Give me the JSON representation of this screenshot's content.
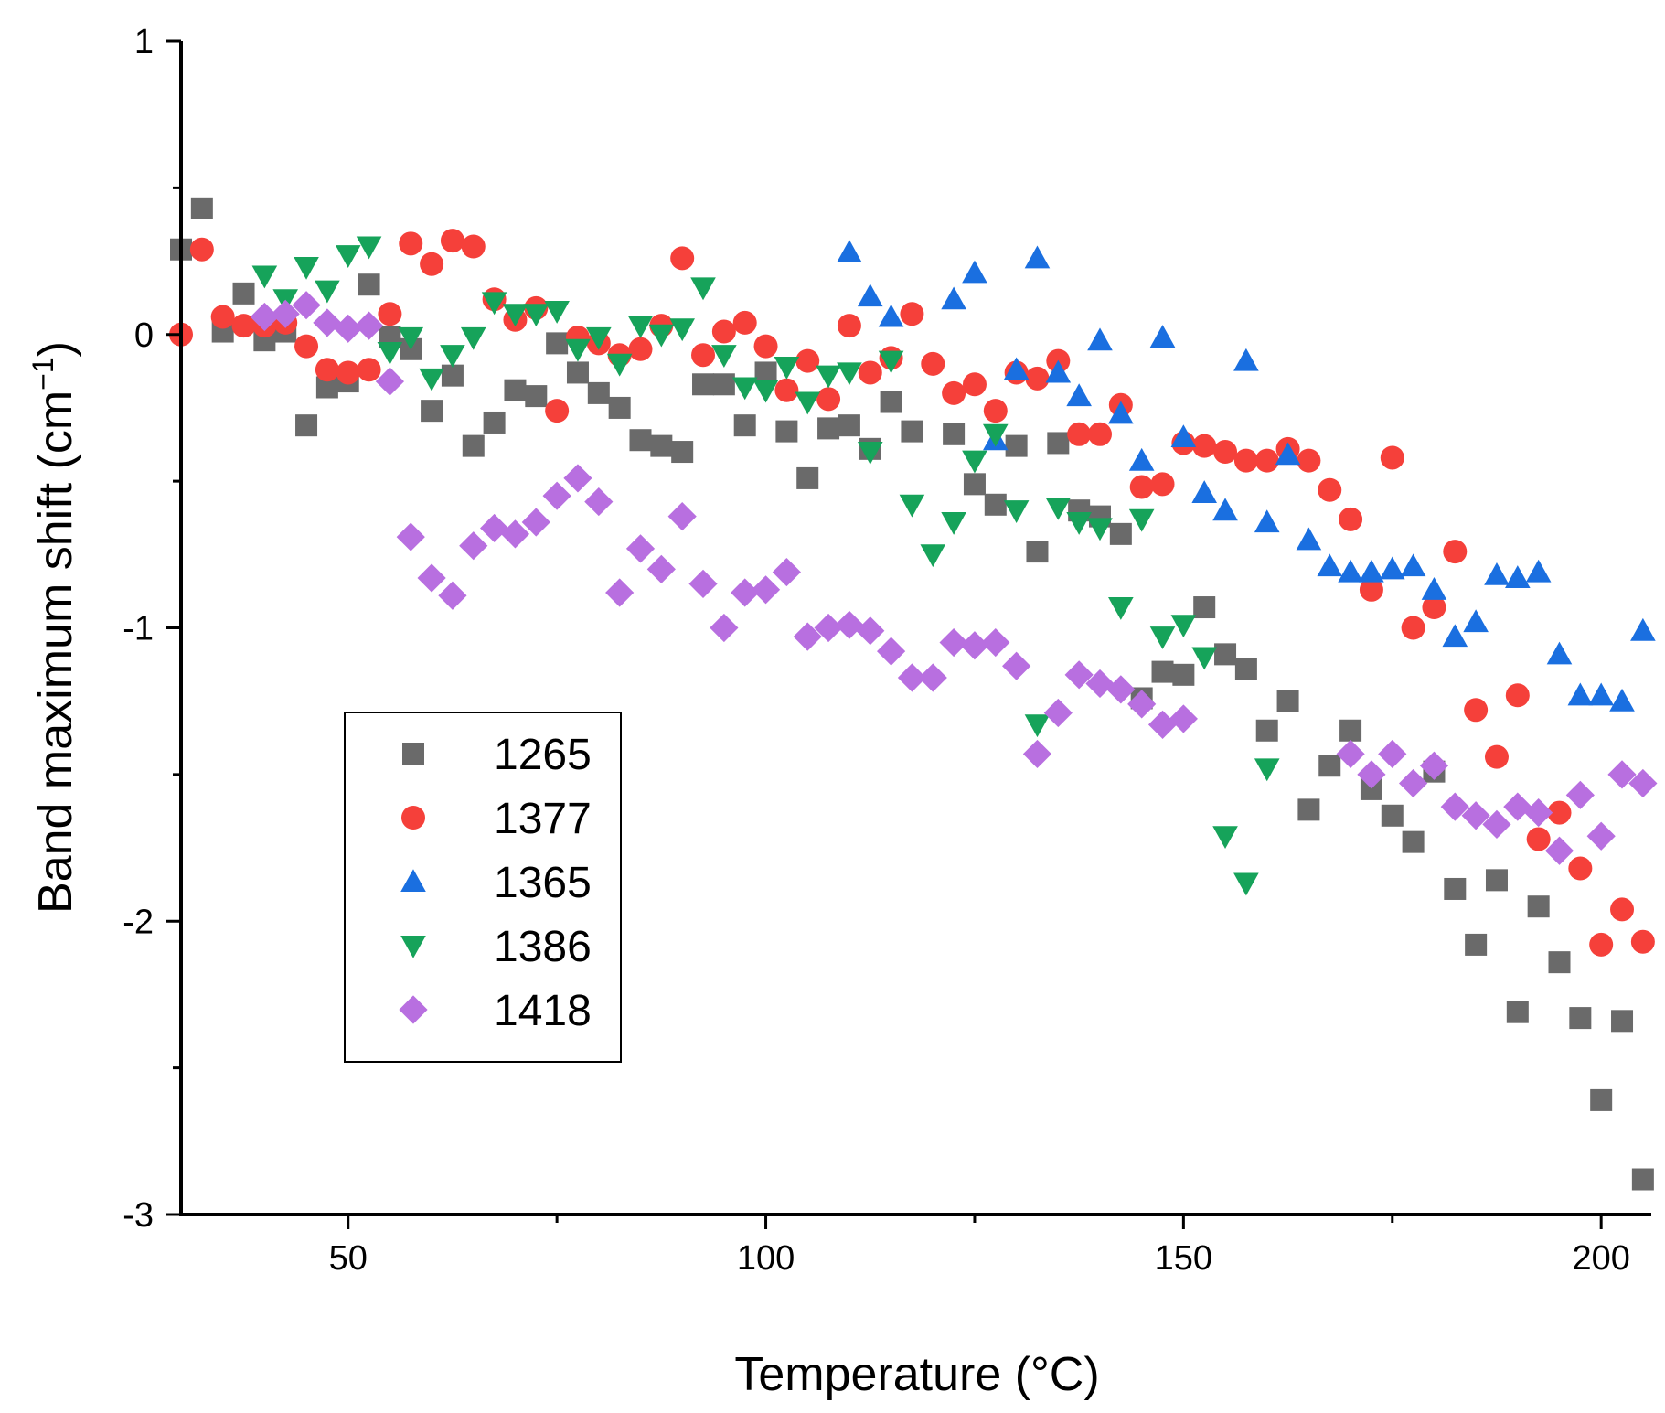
{
  "chart_data": {
    "type": "scatter",
    "title": "",
    "xlabel": "Temperature (°C)",
    "ylabel": "Band maximum shift (cm",
    "ylabel_sup": "−1",
    "ylabel_close": ")",
    "xlim": [
      30,
      206
    ],
    "ylim": [
      -3,
      1
    ],
    "x_ticks": [
      50,
      100,
      150,
      200
    ],
    "y_ticks": [
      -3,
      -2,
      -1,
      0,
      1
    ],
    "y_tick_labels": [
      "-3",
      "-2",
      "-1",
      "0",
      "1"
    ],
    "grid": false,
    "legend_position": "lower-left",
    "series": [
      {
        "name": "1265",
        "marker": "square",
        "color": "#6a6a6a",
        "points": [
          [
            30,
            0.29
          ],
          [
            32.5,
            0.43
          ],
          [
            35,
            0.01
          ],
          [
            37.5,
            0.14
          ],
          [
            40,
            -0.02
          ],
          [
            42.5,
            0.01
          ],
          [
            45,
            -0.31
          ],
          [
            47.5,
            -0.18
          ],
          [
            50,
            -0.16
          ],
          [
            52.5,
            0.17
          ],
          [
            55,
            -0.01
          ],
          [
            57.5,
            -0.05
          ],
          [
            60,
            -0.26
          ],
          [
            62.5,
            -0.14
          ],
          [
            65,
            -0.38
          ],
          [
            67.5,
            -0.3
          ],
          [
            70,
            -0.19
          ],
          [
            72.5,
            -0.21
          ],
          [
            75,
            -0.03
          ],
          [
            77.5,
            -0.13
          ],
          [
            80,
            -0.2
          ],
          [
            82.5,
            -0.25
          ],
          [
            85,
            -0.36
          ],
          [
            87.5,
            -0.38
          ],
          [
            90,
            -0.4
          ],
          [
            92.5,
            -0.17
          ],
          [
            95,
            -0.17
          ],
          [
            97.5,
            -0.31
          ],
          [
            100,
            -0.13
          ],
          [
            102.5,
            -0.33
          ],
          [
            105,
            -0.49
          ],
          [
            107.5,
            -0.32
          ],
          [
            110,
            -0.31
          ],
          [
            112.5,
            -0.39
          ],
          [
            115,
            -0.23
          ],
          [
            117.5,
            -0.33
          ],
          [
            122.5,
            -0.34
          ],
          [
            125,
            -0.51
          ],
          [
            127.5,
            -0.58
          ],
          [
            130,
            -0.38
          ],
          [
            132.5,
            -0.74
          ],
          [
            135,
            -0.37
          ],
          [
            137.5,
            -0.6
          ],
          [
            140,
            -0.62
          ],
          [
            142.5,
            -0.68
          ],
          [
            145,
            -1.24
          ],
          [
            147.5,
            -1.15
          ],
          [
            150,
            -1.16
          ],
          [
            152.5,
            -0.93
          ],
          [
            155,
            -1.09
          ],
          [
            157.5,
            -1.14
          ],
          [
            160,
            -1.35
          ],
          [
            162.5,
            -1.25
          ],
          [
            165,
            -1.62
          ],
          [
            167.5,
            -1.47
          ],
          [
            170,
            -1.35
          ],
          [
            172.5,
            -1.55
          ],
          [
            175,
            -1.64
          ],
          [
            177.5,
            -1.73
          ],
          [
            180,
            -1.49
          ],
          [
            182.5,
            -1.89
          ],
          [
            185,
            -2.08
          ],
          [
            187.5,
            -1.86
          ],
          [
            190,
            -2.31
          ],
          [
            192.5,
            -1.95
          ],
          [
            195,
            -2.14
          ],
          [
            197.5,
            -2.33
          ],
          [
            200,
            -2.61
          ],
          [
            202.5,
            -2.34
          ],
          [
            205,
            -2.88
          ]
        ]
      },
      {
        "name": "1377",
        "marker": "circle",
        "color": "#f5403a",
        "points": [
          [
            30,
            0.0
          ],
          [
            32.5,
            0.29
          ],
          [
            35,
            0.06
          ],
          [
            37.5,
            0.03
          ],
          [
            40,
            0.03
          ],
          [
            42.5,
            0.04
          ],
          [
            45,
            -0.04
          ],
          [
            47.5,
            -0.12
          ],
          [
            50,
            -0.13
          ],
          [
            52.5,
            -0.12
          ],
          [
            55,
            0.07
          ],
          [
            57.5,
            0.31
          ],
          [
            60,
            0.24
          ],
          [
            62.5,
            0.32
          ],
          [
            65,
            0.3
          ],
          [
            67.5,
            0.12
          ],
          [
            70,
            0.05
          ],
          [
            72.5,
            0.09
          ],
          [
            75,
            -0.26
          ],
          [
            77.5,
            -0.01
          ],
          [
            80,
            -0.03
          ],
          [
            82.5,
            -0.07
          ],
          [
            85,
            -0.05
          ],
          [
            87.5,
            0.03
          ],
          [
            90,
            0.26
          ],
          [
            92.5,
            -0.07
          ],
          [
            95,
            0.01
          ],
          [
            97.5,
            0.04
          ],
          [
            100,
            -0.04
          ],
          [
            102.5,
            -0.19
          ],
          [
            105,
            -0.09
          ],
          [
            107.5,
            -0.22
          ],
          [
            110,
            0.03
          ],
          [
            112.5,
            -0.13
          ],
          [
            115,
            -0.08
          ],
          [
            117.5,
            0.07
          ],
          [
            120,
            -0.1
          ],
          [
            122.5,
            -0.2
          ],
          [
            125,
            -0.17
          ],
          [
            127.5,
            -0.26
          ],
          [
            130,
            -0.13
          ],
          [
            132.5,
            -0.15
          ],
          [
            135,
            -0.09
          ],
          [
            137.5,
            -0.34
          ],
          [
            140,
            -0.34
          ],
          [
            142.5,
            -0.24
          ],
          [
            145,
            -0.52
          ],
          [
            147.5,
            -0.51
          ],
          [
            150,
            -0.37
          ],
          [
            152.5,
            -0.38
          ],
          [
            155,
            -0.4
          ],
          [
            157.5,
            -0.43
          ],
          [
            160,
            -0.43
          ],
          [
            162.5,
            -0.39
          ],
          [
            165,
            -0.43
          ],
          [
            167.5,
            -0.53
          ],
          [
            170,
            -0.63
          ],
          [
            172.5,
            -0.87
          ],
          [
            175,
            -0.42
          ],
          [
            177.5,
            -1.0
          ],
          [
            180,
            -0.93
          ],
          [
            182.5,
            -0.74
          ],
          [
            185,
            -1.28
          ],
          [
            187.5,
            -1.44
          ],
          [
            190,
            -1.23
          ],
          [
            192.5,
            -1.72
          ],
          [
            195,
            -1.63
          ],
          [
            197.5,
            -1.82
          ],
          [
            200,
            -2.08
          ],
          [
            202.5,
            -1.96
          ],
          [
            205,
            -2.07
          ]
        ]
      },
      {
        "name": "1365",
        "marker": "triangle-up",
        "color": "#1a6fe0",
        "points": [
          [
            110,
            0.28
          ],
          [
            112.5,
            0.13
          ],
          [
            115,
            0.06
          ],
          [
            122.5,
            0.12
          ],
          [
            125,
            0.21
          ],
          [
            127.5,
            -0.36
          ],
          [
            130,
            -0.12
          ],
          [
            132.5,
            0.26
          ],
          [
            135,
            -0.13
          ],
          [
            137.5,
            -0.21
          ],
          [
            140,
            -0.02
          ],
          [
            142.5,
            -0.27
          ],
          [
            145,
            -0.43
          ],
          [
            147.5,
            -0.01
          ],
          [
            150,
            -0.35
          ],
          [
            152.5,
            -0.54
          ],
          [
            155,
            -0.6
          ],
          [
            157.5,
            -0.09
          ],
          [
            160,
            -0.64
          ],
          [
            162.5,
            -0.41
          ],
          [
            165,
            -0.7
          ],
          [
            167.5,
            -0.79
          ],
          [
            170,
            -0.81
          ],
          [
            172.5,
            -0.81
          ],
          [
            175,
            -0.8
          ],
          [
            177.5,
            -0.79
          ],
          [
            180,
            -0.87
          ],
          [
            182.5,
            -1.03
          ],
          [
            185,
            -0.98
          ],
          [
            187.5,
            -0.82
          ],
          [
            190,
            -0.83
          ],
          [
            192.5,
            -0.81
          ],
          [
            195,
            -1.09
          ],
          [
            197.5,
            -1.23
          ],
          [
            200,
            -1.23
          ],
          [
            202.5,
            -1.25
          ],
          [
            205,
            -1.01
          ]
        ]
      },
      {
        "name": "1386",
        "marker": "triangle-down",
        "color": "#16a35a",
        "points": [
          [
            40,
            0.2
          ],
          [
            42.5,
            0.12
          ],
          [
            45,
            0.23
          ],
          [
            47.5,
            0.15
          ],
          [
            50,
            0.27
          ],
          [
            52.5,
            0.3
          ],
          [
            55,
            -0.06
          ],
          [
            57.5,
            -0.01
          ],
          [
            60,
            -0.15
          ],
          [
            62.5,
            -0.07
          ],
          [
            65,
            -0.01
          ],
          [
            67.5,
            0.11
          ],
          [
            70,
            0.07
          ],
          [
            72.5,
            0.07
          ],
          [
            75,
            0.08
          ],
          [
            77.5,
            -0.05
          ],
          [
            80,
            -0.01
          ],
          [
            82.5,
            -0.1
          ],
          [
            85,
            0.03
          ],
          [
            87.5,
            0.0
          ],
          [
            90,
            0.02
          ],
          [
            92.5,
            0.16
          ],
          [
            95,
            -0.07
          ],
          [
            97.5,
            -0.18
          ],
          [
            100,
            -0.19
          ],
          [
            102.5,
            -0.11
          ],
          [
            105,
            -0.23
          ],
          [
            107.5,
            -0.14
          ],
          [
            110,
            -0.13
          ],
          [
            112.5,
            -0.4
          ],
          [
            115,
            -0.09
          ],
          [
            117.5,
            -0.58
          ],
          [
            120,
            -0.75
          ],
          [
            122.5,
            -0.64
          ],
          [
            125,
            -0.43
          ],
          [
            127.5,
            -0.34
          ],
          [
            130,
            -0.6
          ],
          [
            132.5,
            -1.33
          ],
          [
            135,
            -0.59
          ],
          [
            137.5,
            -0.64
          ],
          [
            140,
            -0.66
          ],
          [
            142.5,
            -0.93
          ],
          [
            145,
            -0.63
          ],
          [
            147.5,
            -1.03
          ],
          [
            150,
            -0.99
          ],
          [
            152.5,
            -1.1
          ],
          [
            155,
            -1.71
          ],
          [
            157.5,
            -1.87
          ],
          [
            160,
            -1.48
          ]
        ]
      },
      {
        "name": "1418",
        "marker": "diamond",
        "color": "#b86fe0",
        "points": [
          [
            40,
            0.06
          ],
          [
            42.5,
            0.07
          ],
          [
            45,
            0.1
          ],
          [
            47.5,
            0.04
          ],
          [
            50,
            0.02
          ],
          [
            52.5,
            0.03
          ],
          [
            55,
            -0.16
          ],
          [
            57.5,
            -0.69
          ],
          [
            60,
            -0.83
          ],
          [
            62.5,
            -0.89
          ],
          [
            65,
            -0.72
          ],
          [
            67.5,
            -0.66
          ],
          [
            70,
            -0.68
          ],
          [
            72.5,
            -0.64
          ],
          [
            75,
            -0.55
          ],
          [
            77.5,
            -0.49
          ],
          [
            80,
            -0.57
          ],
          [
            82.5,
            -0.88
          ],
          [
            85,
            -0.73
          ],
          [
            87.5,
            -0.8
          ],
          [
            90,
            -0.62
          ],
          [
            92.5,
            -0.85
          ],
          [
            95,
            -1.0
          ],
          [
            97.5,
            -0.88
          ],
          [
            100,
            -0.87
          ],
          [
            102.5,
            -0.81
          ],
          [
            105,
            -1.03
          ],
          [
            107.5,
            -1.0
          ],
          [
            110,
            -0.99
          ],
          [
            112.5,
            -1.01
          ],
          [
            115,
            -1.08
          ],
          [
            117.5,
            -1.17
          ],
          [
            120,
            -1.17
          ],
          [
            122.5,
            -1.05
          ],
          [
            125,
            -1.06
          ],
          [
            127.5,
            -1.05
          ],
          [
            130,
            -1.13
          ],
          [
            132.5,
            -1.43
          ],
          [
            135,
            -1.29
          ],
          [
            137.5,
            -1.16
          ],
          [
            140,
            -1.19
          ],
          [
            142.5,
            -1.21
          ],
          [
            145,
            -1.26
          ],
          [
            147.5,
            -1.33
          ],
          [
            150,
            -1.31
          ],
          [
            170,
            -1.43
          ],
          [
            172.5,
            -1.5
          ],
          [
            175,
            -1.43
          ],
          [
            177.5,
            -1.53
          ],
          [
            180,
            -1.47
          ],
          [
            182.5,
            -1.61
          ],
          [
            185,
            -1.64
          ],
          [
            187.5,
            -1.67
          ],
          [
            190,
            -1.61
          ],
          [
            192.5,
            -1.63
          ],
          [
            195,
            -1.76
          ],
          [
            197.5,
            -1.57
          ],
          [
            200,
            -1.71
          ],
          [
            202.5,
            -1.5
          ],
          [
            205,
            -1.53
          ]
        ]
      }
    ]
  }
}
